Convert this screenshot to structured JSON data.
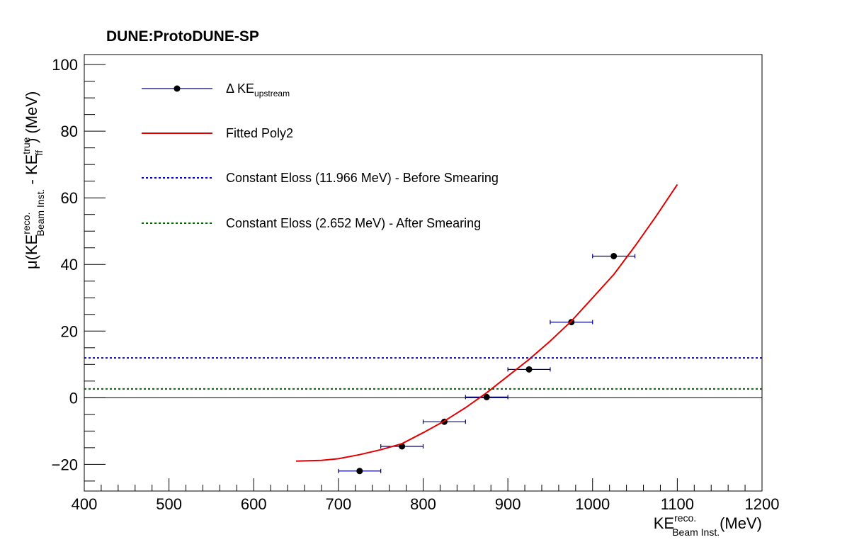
{
  "chart_data": {
    "type": "scatter",
    "title": "DUNE:ProtoDUNE-SP",
    "xlabel": {
      "base": "KE",
      "sup": "reco.",
      "sub": "Beam  Inst.",
      "unit": "(MeV)"
    },
    "ylabel": {
      "prefix": "μ(KE",
      "sup1": "reco.",
      "sub1": "Beam  Inst.",
      "mid": " - KE",
      "sup2": "true",
      "sub2": "ff",
      "suffix": ") (MeV)"
    },
    "xlim": [
      400,
      1200
    ],
    "ylim": [
      -28,
      103
    ],
    "x_ticks": [
      "400",
      "500",
      "600",
      "700",
      "800",
      "900",
      "1000",
      "1100",
      "1200"
    ],
    "y_ticks": [
      "−20",
      "0",
      "20",
      "40",
      "60",
      "80",
      "100"
    ],
    "grid": false,
    "legend_position": "top-left",
    "series": [
      {
        "name": "Δ KE",
        "name_sub": "upstream",
        "kind": "points_with_xerr",
        "color": "#000000",
        "errcolor": "#00007a",
        "points": [
          {
            "x": 725,
            "y": -22.0,
            "xerr": 25
          },
          {
            "x": 775,
            "y": -14.6,
            "xerr": 25
          },
          {
            "x": 825,
            "y": -7.2,
            "xerr": 25
          },
          {
            "x": 875,
            "y": 0.2,
            "xerr": 25
          },
          {
            "x": 925,
            "y": 8.5,
            "xerr": 25
          },
          {
            "x": 975,
            "y": 22.7,
            "xerr": 25
          },
          {
            "x": 1025,
            "y": 42.5,
            "xerr": 25
          }
        ]
      },
      {
        "name": "Fitted Poly2",
        "kind": "curve",
        "color": "#e00000",
        "x": [
          650,
          680,
          700,
          725,
          750,
          775,
          800,
          825,
          850,
          875,
          900,
          925,
          950,
          975,
          1000,
          1025,
          1050,
          1075,
          1100
        ],
        "y": [
          -19.0,
          -18.8,
          -18.3,
          -17.1,
          -15.6,
          -13.8,
          -10.5,
          -7.0,
          -3.0,
          1.5,
          6.5,
          11.5,
          17.0,
          23.0,
          30.0,
          37.0,
          45.5,
          54.5,
          64.0
        ]
      },
      {
        "name": "Constant Eloss (11.966 MeV) - Before Smearing",
        "kind": "hline",
        "y": 11.966,
        "color": "#0000d0",
        "dash": "dotted"
      },
      {
        "name": "Constant Eloss (2.652 MeV) - After Smearing",
        "kind": "hline",
        "y": 2.652,
        "color": "#006400",
        "dash": "dotted"
      }
    ],
    "zero_line": 0
  }
}
